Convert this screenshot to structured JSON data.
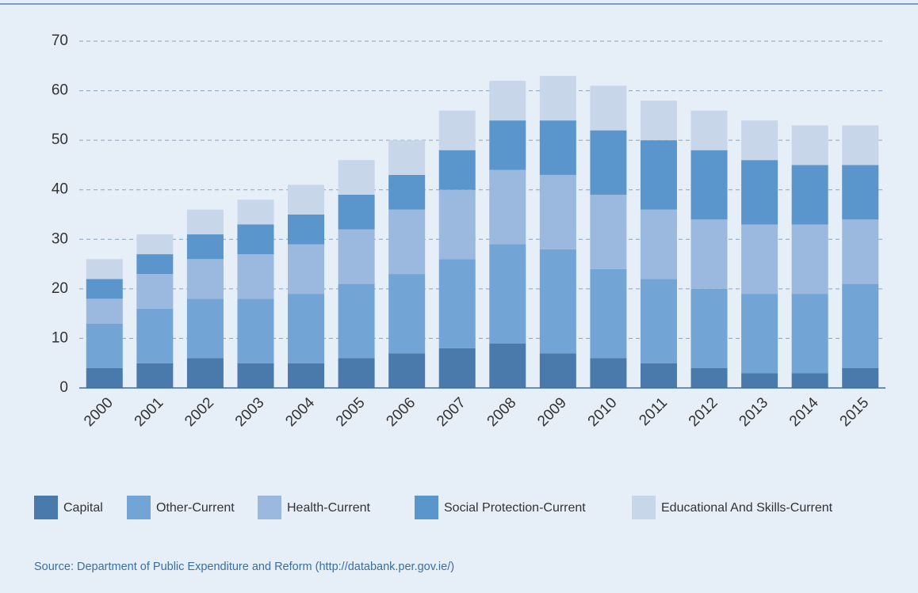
{
  "chart_data": {
    "type": "stacked-bar",
    "source": "Source: Department of Public Expenditure and Reform (http://databank.per.gov.ie/)",
    "categories": [
      "2000",
      "2001",
      "2002",
      "2003",
      "2004",
      "2005",
      "2006",
      "2007",
      "2008",
      "2009",
      "2010",
      "2011",
      "2012",
      "2013",
      "2014",
      "2015"
    ],
    "series": [
      {
        "name": "Capital",
        "color": "#4a7aab",
        "values": [
          4,
          5,
          6,
          5,
          5,
          6,
          7,
          8,
          9,
          7,
          6,
          5,
          4,
          3,
          3,
          4
        ]
      },
      {
        "name": "Other-Current",
        "color": "#72a4d6",
        "values": [
          9,
          11,
          12,
          13,
          14,
          15,
          16,
          18,
          20,
          21,
          18,
          17,
          16,
          16,
          16,
          17
        ]
      },
      {
        "name": "Health-Current",
        "color": "#9bb8de",
        "values": [
          5,
          7,
          8,
          9,
          10,
          11,
          13,
          14,
          15,
          15,
          15,
          14,
          14,
          14,
          14,
          13
        ]
      },
      {
        "name": "Social Protection-Current",
        "color": "#5a96cc",
        "values": [
          4,
          4,
          5,
          6,
          6,
          7,
          7,
          8,
          10,
          11,
          13,
          14,
          14,
          13,
          12,
          11
        ]
      },
      {
        "name": "Educational And Skills-Current",
        "color": "#c8d6ea",
        "values": [
          4,
          4,
          5,
          5,
          6,
          7,
          7,
          8,
          8,
          9,
          9,
          8,
          8,
          8,
          8,
          8
        ]
      }
    ],
    "ylim": [
      0,
      70
    ],
    "yticks": [
      0,
      10,
      20,
      30,
      40,
      50,
      60,
      70
    ],
    "grid": true
  }
}
